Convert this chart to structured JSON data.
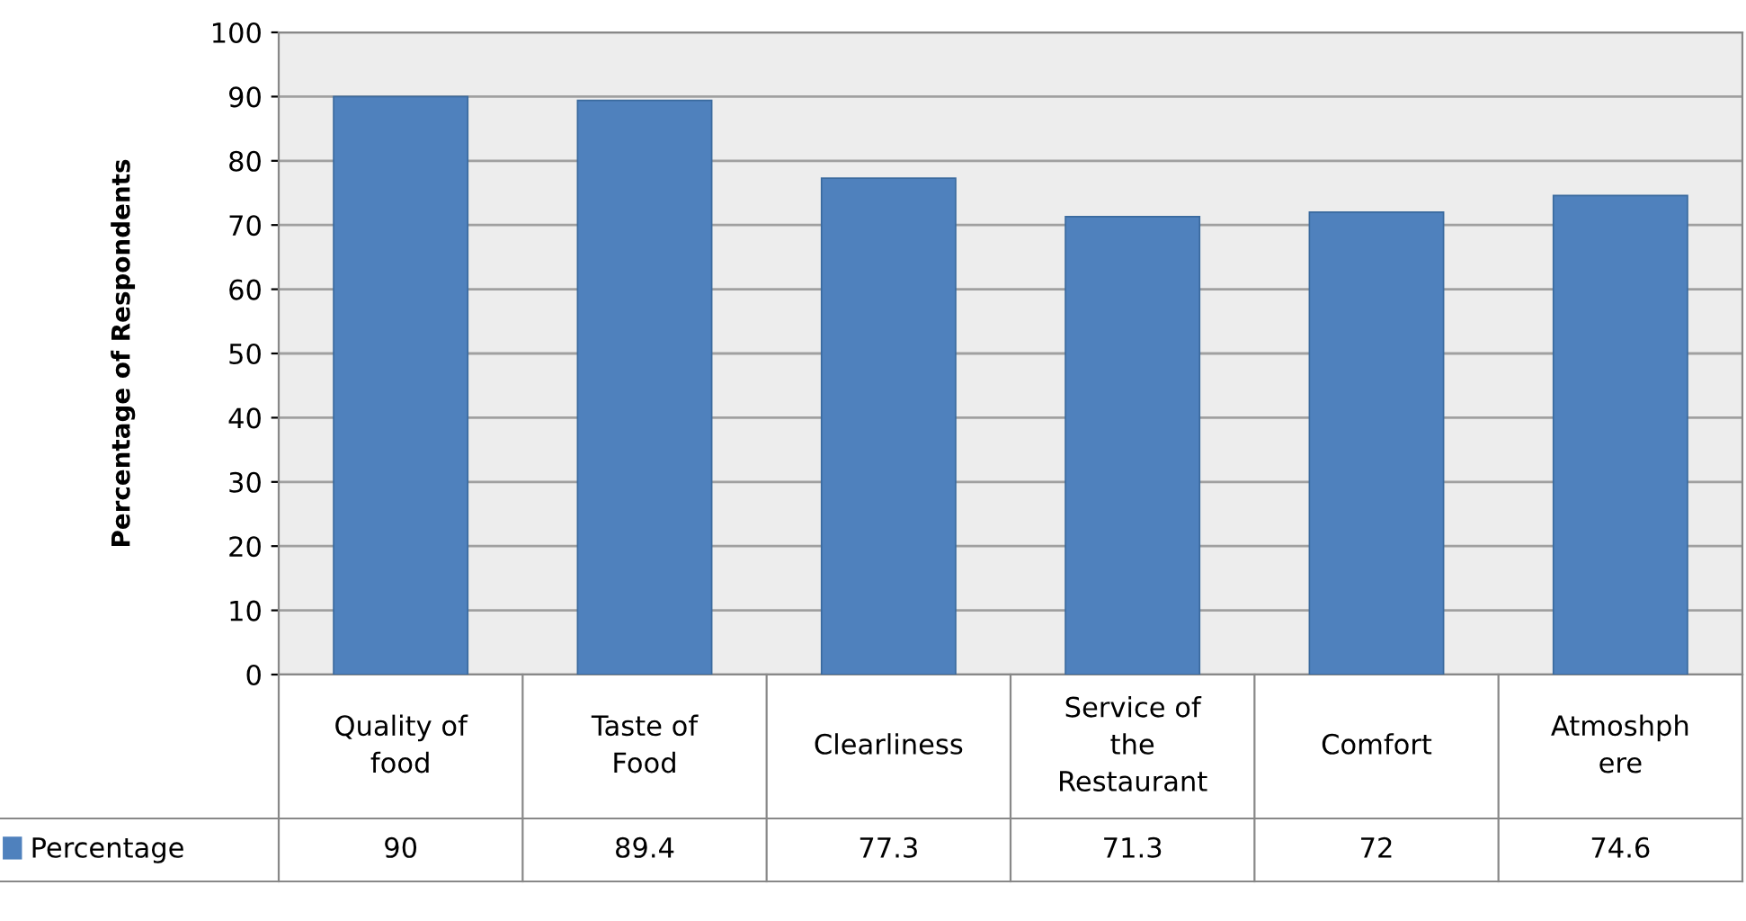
{
  "chart_data": {
    "type": "bar",
    "ylabel": "Percentage of Respondents",
    "categories": [
      "Quality of\nfood",
      "Taste of\nFood",
      "Clearliness",
      "Service of\nthe\nRestaurant",
      "Comfort",
      "Atmoshph\nere"
    ],
    "series": [
      {
        "name": "Percentage",
        "color": "#4f81bd",
        "values": [
          90,
          89.4,
          77.3,
          71.3,
          72,
          74.6
        ]
      }
    ],
    "ylim": [
      0,
      100
    ],
    "yticks": [
      0,
      10,
      20,
      30,
      40,
      50,
      60,
      70,
      80,
      90,
      100
    ],
    "grid": "y",
    "legend": "bottom",
    "data_labels": true
  }
}
